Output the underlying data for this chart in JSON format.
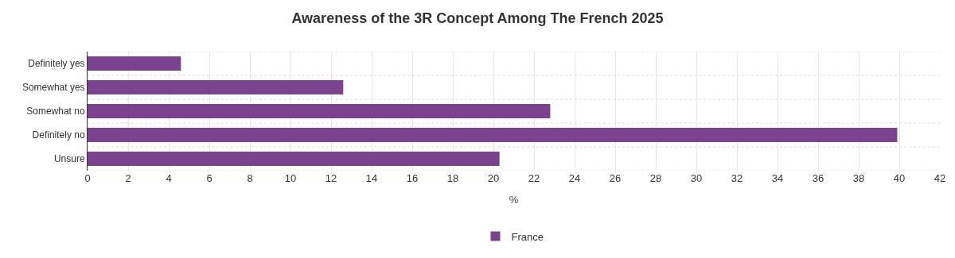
{
  "chart_data": {
    "type": "bar",
    "orientation": "horizontal",
    "title": "Awareness of the 3R Concept Among The French 2025",
    "categories": [
      "Definitely yes",
      "Somewhat yes",
      "Somewhat no",
      "Definitely no",
      "Unsure"
    ],
    "series": [
      {
        "name": "France",
        "color": "#7b4290",
        "values": [
          4.6,
          12.6,
          22.8,
          39.9,
          20.3
        ]
      }
    ],
    "xlabel": "%",
    "xlim": [
      0,
      42
    ],
    "xticks": [
      0,
      2,
      4,
      6,
      8,
      10,
      12,
      14,
      16,
      18,
      20,
      22,
      24,
      26,
      28,
      30,
      32,
      34,
      36,
      38,
      40,
      42
    ],
    "grid": true,
    "legend": "bottom"
  }
}
